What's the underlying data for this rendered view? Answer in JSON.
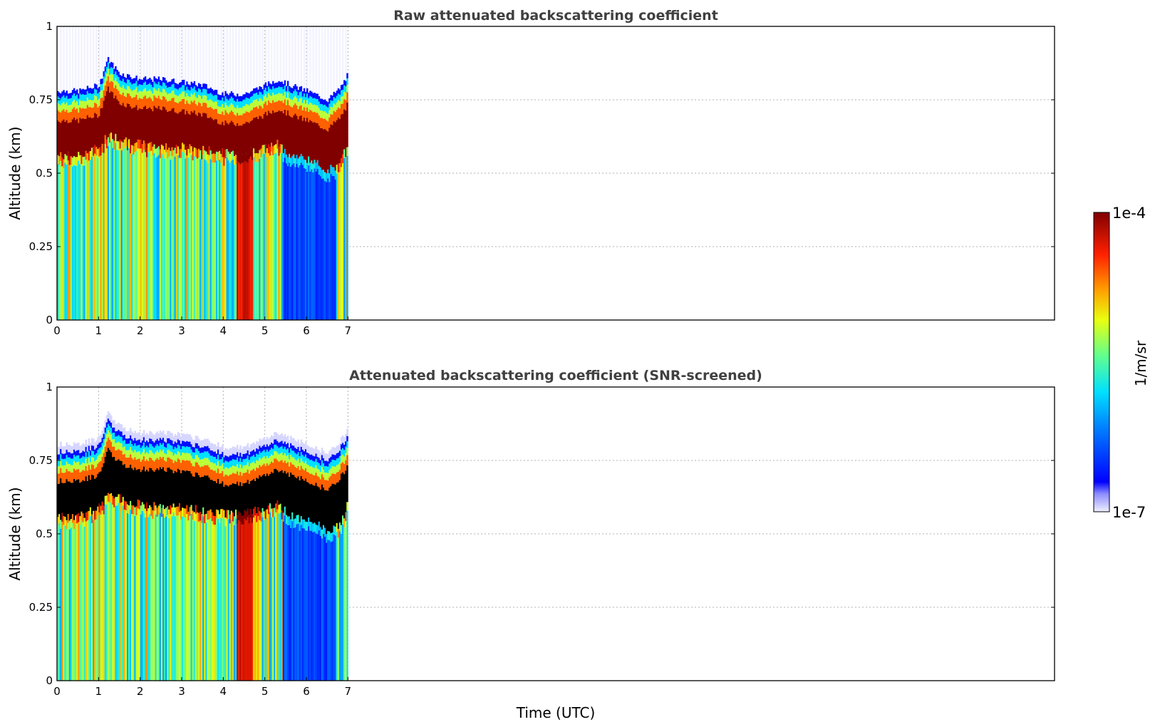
{
  "chart_data": [
    {
      "type": "heatmap",
      "title": "Raw attenuated backscattering coefficient",
      "xlabel": "Time (UTC)",
      "ylabel": "Altitude (km)",
      "xlim": [
        0,
        24
      ],
      "ylim": [
        0,
        1
      ],
      "xticks": [
        "0",
        "1",
        "2",
        "3",
        "4",
        "5",
        "6",
        "7"
      ],
      "yticks": [
        "0",
        "0.25",
        "0.5",
        "0.75",
        "1"
      ],
      "data_extent_hours": 7,
      "grid": true,
      "screened": false,
      "layer_top_km": [
        [
          0,
          0.78
        ],
        [
          0.5,
          0.78
        ],
        [
          1.0,
          0.8
        ],
        [
          1.2,
          0.89
        ],
        [
          1.5,
          0.84
        ],
        [
          2.0,
          0.82
        ],
        [
          2.5,
          0.82
        ],
        [
          3.0,
          0.81
        ],
        [
          3.5,
          0.8
        ],
        [
          4.0,
          0.77
        ],
        [
          4.5,
          0.77
        ],
        [
          5.0,
          0.8
        ],
        [
          5.3,
          0.82
        ],
        [
          5.6,
          0.8
        ],
        [
          6.0,
          0.78
        ],
        [
          6.5,
          0.75
        ],
        [
          6.8,
          0.79
        ],
        [
          7.0,
          0.84
        ]
      ],
      "layer_base_km": [
        [
          0,
          0.53
        ],
        [
          0.5,
          0.53
        ],
        [
          1.0,
          0.56
        ],
        [
          1.2,
          0.6
        ],
        [
          1.5,
          0.59
        ],
        [
          2.0,
          0.57
        ],
        [
          2.5,
          0.56
        ],
        [
          3.0,
          0.56
        ],
        [
          3.5,
          0.55
        ],
        [
          4.0,
          0.54
        ],
        [
          4.5,
          0.54
        ],
        [
          5.0,
          0.56
        ],
        [
          5.3,
          0.57
        ],
        [
          5.6,
          0.53
        ],
        [
          6.0,
          0.52
        ],
        [
          6.5,
          0.48
        ],
        [
          6.8,
          0.5
        ],
        [
          7.0,
          0.58
        ]
      ]
    },
    {
      "type": "heatmap",
      "title": "Attenuated backscattering coefficient (SNR-screened)",
      "xlabel": "Time (UTC)",
      "ylabel": "Altitude (km)",
      "xlim": [
        0,
        24
      ],
      "ylim": [
        0,
        1
      ],
      "xticks": [
        "0",
        "1",
        "2",
        "3",
        "4",
        "5",
        "6",
        "7"
      ],
      "yticks": [
        "0",
        "0.25",
        "0.5",
        "0.75",
        "1"
      ],
      "data_extent_hours": 7,
      "grid": true,
      "screened": true,
      "layer_top_km": [
        [
          0,
          0.78
        ],
        [
          0.5,
          0.78
        ],
        [
          1.0,
          0.8
        ],
        [
          1.2,
          0.89
        ],
        [
          1.5,
          0.84
        ],
        [
          2.0,
          0.82
        ],
        [
          2.5,
          0.82
        ],
        [
          3.0,
          0.81
        ],
        [
          3.5,
          0.8
        ],
        [
          4.0,
          0.77
        ],
        [
          4.5,
          0.77
        ],
        [
          5.0,
          0.8
        ],
        [
          5.3,
          0.82
        ],
        [
          5.6,
          0.8
        ],
        [
          6.0,
          0.78
        ],
        [
          6.5,
          0.75
        ],
        [
          6.8,
          0.79
        ],
        [
          7.0,
          0.84
        ]
      ],
      "layer_base_km": [
        [
          0,
          0.53
        ],
        [
          0.5,
          0.53
        ],
        [
          1.0,
          0.56
        ],
        [
          1.2,
          0.6
        ],
        [
          1.5,
          0.59
        ],
        [
          2.0,
          0.57
        ],
        [
          2.5,
          0.56
        ],
        [
          3.0,
          0.56
        ],
        [
          3.5,
          0.55
        ],
        [
          4.0,
          0.54
        ],
        [
          4.5,
          0.54
        ],
        [
          5.0,
          0.56
        ],
        [
          5.3,
          0.57
        ],
        [
          5.6,
          0.53
        ],
        [
          6.0,
          0.52
        ],
        [
          6.5,
          0.48
        ],
        [
          6.8,
          0.5
        ],
        [
          7.0,
          0.58
        ]
      ]
    }
  ],
  "shared": {
    "xlabel": "Time (UTC)"
  },
  "colorbar": {
    "label": "1/m/sr",
    "max_label": "1e-4",
    "min_label": "1e-7",
    "scale": "log",
    "colormap": "jet"
  }
}
